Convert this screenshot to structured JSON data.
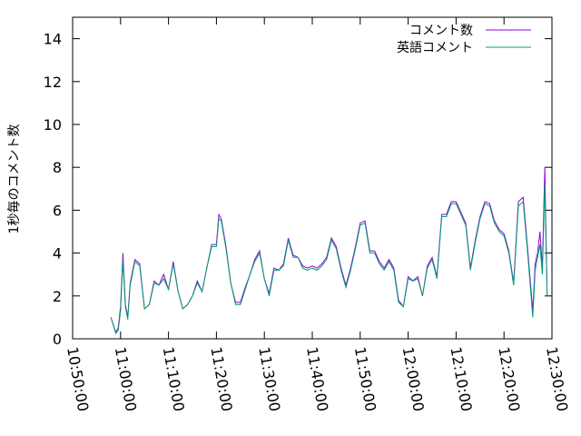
{
  "chart_data": {
    "type": "line",
    "ylabel": "1秒毎のコメント数",
    "xlabel": "",
    "title": "",
    "ylim": [
      0,
      15
    ],
    "y_ticks": [
      "0",
      "2",
      "4",
      "6",
      "8",
      "10",
      "12",
      "14"
    ],
    "x_ticks": [
      "10:50:00",
      "11:00:00",
      "11:10:00",
      "11:20:00",
      "11:30:00",
      "11:40:00",
      "11:50:00",
      "12:00:00",
      "12:10:00",
      "12:20:00",
      "12:30:00"
    ],
    "xlim": [
      "10:50:00",
      "12:30:00"
    ],
    "grid": false,
    "legend_position": "top-right",
    "x": [
      "10:58:00",
      "10:59:00",
      "10:59:30",
      "11:00:00",
      "11:00:30",
      "11:01:00",
      "11:01:30",
      "11:02:00",
      "11:03:00",
      "11:04:00",
      "11:05:00",
      "11:06:00",
      "11:07:00",
      "11:08:00",
      "11:09:00",
      "11:10:00",
      "11:11:00",
      "11:12:00",
      "11:13:00",
      "11:14:00",
      "11:15:00",
      "11:16:00",
      "11:17:00",
      "11:18:00",
      "11:19:00",
      "11:20:00",
      "11:20:30",
      "11:21:00",
      "11:22:00",
      "11:23:00",
      "11:24:00",
      "11:25:00",
      "11:26:00",
      "11:27:00",
      "11:28:00",
      "11:29:00",
      "11:30:00",
      "11:31:00",
      "11:32:00",
      "11:33:00",
      "11:34:00",
      "11:35:00",
      "11:36:00",
      "11:37:00",
      "11:38:00",
      "11:39:00",
      "11:40:00",
      "11:41:00",
      "11:42:00",
      "11:43:00",
      "11:44:00",
      "11:45:00",
      "11:46:00",
      "11:47:00",
      "11:48:00",
      "11:49:00",
      "11:50:00",
      "11:51:00",
      "11:52:00",
      "11:53:00",
      "11:54:00",
      "11:55:00",
      "11:56:00",
      "11:57:00",
      "11:58:00",
      "11:59:00",
      "12:00:00",
      "12:01:00",
      "12:02:00",
      "12:03:00",
      "12:04:00",
      "12:05:00",
      "12:06:00",
      "12:07:00",
      "12:08:00",
      "12:09:00",
      "12:10:00",
      "12:11:00",
      "12:12:00",
      "12:13:00",
      "12:14:00",
      "12:15:00",
      "12:16:00",
      "12:17:00",
      "12:18:00",
      "12:19:00",
      "12:20:00",
      "12:21:00",
      "12:22:00",
      "12:23:00",
      "12:24:00",
      "12:25:00",
      "12:26:00",
      "12:26:30",
      "12:27:00",
      "12:27:30",
      "12:28:00",
      "12:28:30",
      "12:29:00"
    ],
    "series": [
      {
        "name": "コメント数",
        "color": "#9400d3",
        "values": [
          1.0,
          0.3,
          0.5,
          1.5,
          4.0,
          1.6,
          1.0,
          2.6,
          3.7,
          3.5,
          1.4,
          1.6,
          2.7,
          2.5,
          3.0,
          2.3,
          3.6,
          2.2,
          1.4,
          1.6,
          2.0,
          2.7,
          2.2,
          3.3,
          4.4,
          4.4,
          5.8,
          5.6,
          4.3,
          2.6,
          1.7,
          1.7,
          2.4,
          3.0,
          3.7,
          4.1,
          2.8,
          2.1,
          3.3,
          3.2,
          3.5,
          4.7,
          3.9,
          3.8,
          3.4,
          3.3,
          3.4,
          3.3,
          3.5,
          3.8,
          4.7,
          4.3,
          3.3,
          2.5,
          3.3,
          4.3,
          5.4,
          5.5,
          4.1,
          4.1,
          3.6,
          3.3,
          3.7,
          3.3,
          1.8,
          1.5,
          2.9,
          2.7,
          2.9,
          2.0,
          3.4,
          3.8,
          2.9,
          5.8,
          5.8,
          6.4,
          6.4,
          5.9,
          5.4,
          3.3,
          4.6,
          5.7,
          6.4,
          6.3,
          5.5,
          5.1,
          4.9,
          4.1,
          2.6,
          6.4,
          6.6,
          4.0,
          1.3,
          3.5,
          4.0,
          5.0,
          3.3,
          8.0,
          2.0
        ]
      },
      {
        "name": "英語コメント",
        "color": "#009e73",
        "values": [
          1.0,
          0.25,
          0.4,
          1.3,
          3.7,
          1.5,
          0.9,
          2.5,
          3.6,
          3.4,
          1.4,
          1.6,
          2.6,
          2.5,
          2.8,
          2.3,
          3.5,
          2.2,
          1.4,
          1.6,
          2.0,
          2.6,
          2.2,
          3.3,
          4.3,
          4.3,
          5.6,
          5.5,
          4.2,
          2.6,
          1.6,
          1.6,
          2.3,
          3.0,
          3.6,
          4.0,
          2.8,
          2.0,
          3.2,
          3.2,
          3.4,
          4.6,
          3.8,
          3.8,
          3.3,
          3.2,
          3.3,
          3.2,
          3.4,
          3.7,
          4.6,
          4.2,
          3.2,
          2.4,
          3.2,
          4.2,
          5.3,
          5.4,
          4.0,
          4.0,
          3.5,
          3.2,
          3.6,
          3.2,
          1.7,
          1.5,
          2.8,
          2.7,
          2.8,
          2.0,
          3.3,
          3.7,
          2.8,
          5.7,
          5.7,
          6.3,
          6.3,
          5.8,
          5.3,
          3.2,
          4.5,
          5.6,
          6.3,
          6.2,
          5.4,
          5.0,
          4.8,
          4.0,
          2.5,
          6.2,
          6.4,
          3.8,
          1.0,
          3.2,
          3.8,
          4.4,
          3.0,
          7.2,
          2.0
        ]
      }
    ]
  }
}
